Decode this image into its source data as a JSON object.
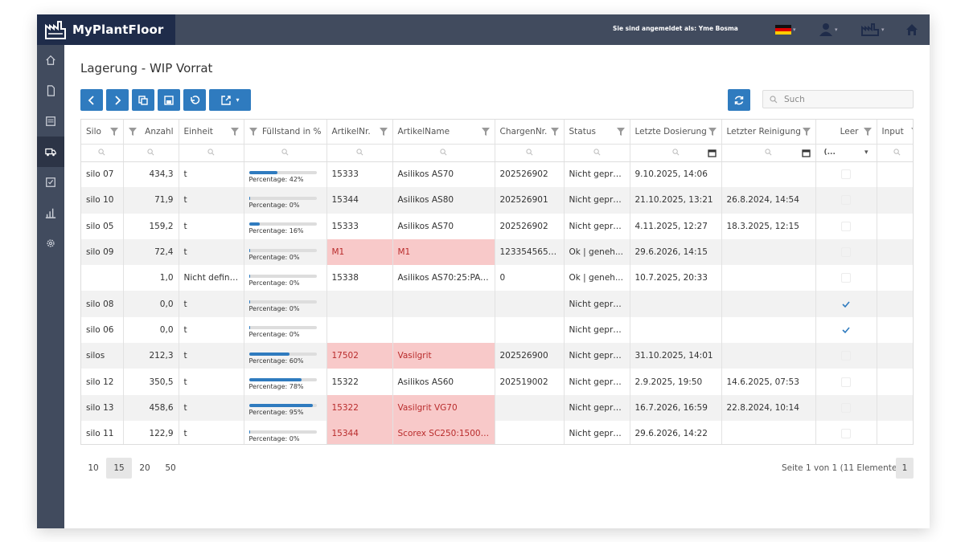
{
  "app": {
    "name": "MyPlantFloor",
    "login_text": "Sie sind angemeldet als: Yme Bosma"
  },
  "colors": {
    "accent": "#2f7bbf",
    "topbar": "#414b5e",
    "brand_bg": "#1f2c4a",
    "highlight": "#f8c9c9"
  },
  "sidebar": {
    "items": [
      {
        "icon": "home-icon"
      },
      {
        "icon": "document-icon"
      },
      {
        "icon": "list-icon"
      },
      {
        "icon": "truck-icon",
        "active": true
      },
      {
        "icon": "checklist-icon"
      },
      {
        "icon": "bar-chart-icon"
      },
      {
        "icon": "gear-icon"
      }
    ]
  },
  "page": {
    "title": "Lagerung - WIP Vorrat"
  },
  "search": {
    "placeholder": "Such"
  },
  "columns": {
    "silo": "Silo",
    "anzahl": "Anzahl",
    "einheit": "Einheit",
    "fuellstand": "Füllstand in %",
    "artikelnr": "ArtikelNr.",
    "artikelname": "ArtikelName",
    "chargennr": "ChargenNr.",
    "status": "Status",
    "letzte_dosierung": "Letzte Dosierung",
    "letzter_reinigung": "Letzter Reinigung",
    "leer": "Leer",
    "input": "Input"
  },
  "leer_filter": "(...",
  "percentage_prefix": "Percentage: ",
  "rows": [
    {
      "silo": "silo 07",
      "anzahl": "434,3",
      "einheit": "t",
      "pct": 42,
      "pct_label": "Percentage: 42%",
      "artikelnr": "15333",
      "artikelname": "Asilikos AS70",
      "chargennr": "202526902",
      "status": "Nicht geprüft",
      "dosierung": "9.10.2025, 14:06",
      "reinigung": "",
      "leer": false,
      "red": false
    },
    {
      "silo": "silo 10",
      "anzahl": "71,9",
      "einheit": "t",
      "pct": 0,
      "pct_label": "Percentage: 0%",
      "artikelnr": "15344",
      "artikelname": "Asilikos AS80",
      "chargennr": "202526901",
      "status": "Nicht geprüft",
      "dosierung": "21.10.2025, 13:21",
      "reinigung": "26.8.2024, 14:54",
      "leer": false,
      "red": false
    },
    {
      "silo": "silo 05",
      "anzahl": "159,2",
      "einheit": "t",
      "pct": 16,
      "pct_label": "Percentage: 16%",
      "artikelnr": "15333",
      "artikelname": "Asilikos AS70",
      "chargennr": "202526902",
      "status": "Nicht geprüft",
      "dosierung": "4.11.2025, 12:27",
      "reinigung": "18.3.2025, 12:15",
      "leer": false,
      "red": false
    },
    {
      "silo": "silo 09",
      "anzahl": "72,4",
      "einheit": "t",
      "pct": 0,
      "pct_label": "Percentage: 0%",
      "artikelnr": "M1",
      "artikelname": "M1",
      "chargennr": "12335456546",
      "status": "Ok | geneh...",
      "dosierung": "29.6.2026, 14:15",
      "reinigung": "",
      "leer": false,
      "red": true
    },
    {
      "silo": "",
      "anzahl": "1,0",
      "einheit": "Nicht definiert",
      "pct": 0,
      "pct_label": "Percentage: 0%",
      "artikelnr": "15338",
      "artikelname": "Asilikos AS70:25:PA:H...",
      "chargennr": "0",
      "status": "Ok | geneh...",
      "dosierung": "10.7.2025, 20:33",
      "reinigung": "",
      "leer": false,
      "red": false
    },
    {
      "silo": "silo 08",
      "anzahl": "0,0",
      "einheit": "t",
      "pct": 0,
      "pct_label": "Percentage: 0%",
      "artikelnr": "",
      "artikelname": "",
      "chargennr": "",
      "status": "Nicht geprüft",
      "dosierung": "",
      "reinigung": "",
      "leer": true,
      "red": false
    },
    {
      "silo": "silo 06",
      "anzahl": "0,0",
      "einheit": "t",
      "pct": 0,
      "pct_label": "Percentage: 0%",
      "artikelnr": "",
      "artikelname": "",
      "chargennr": "",
      "status": "Nicht geprüft",
      "dosierung": "",
      "reinigung": "",
      "leer": true,
      "red": false
    },
    {
      "silo": "silos",
      "anzahl": "212,3",
      "einheit": "t",
      "pct": 60,
      "pct_label": "Percentage: 60%",
      "artikelnr": "17502",
      "artikelname": "Vasilgrit",
      "chargennr": "202526900",
      "status": "Nicht geprüft",
      "dosierung": "31.10.2025, 14:01",
      "reinigung": "",
      "leer": false,
      "red": true
    },
    {
      "silo": "silo 12",
      "anzahl": "350,5",
      "einheit": "t",
      "pct": 78,
      "pct_label": "Percentage: 78%",
      "artikelnr": "15322",
      "artikelname": "Asilikos AS60",
      "chargennr": "202519002",
      "status": "Nicht geprüft",
      "dosierung": "2.9.2025, 19:50",
      "reinigung": "14.6.2025, 07:53",
      "leer": false,
      "red": false
    },
    {
      "silo": "silo 13",
      "anzahl": "458,6",
      "einheit": "t",
      "pct": 95,
      "pct_label": "Percentage: 95%",
      "artikelnr": "15322",
      "artikelname": "Vasilgrit VG70",
      "chargennr": "",
      "status": "Nicht geprüft",
      "dosierung": "16.7.2026, 16:59",
      "reinigung": "22.8.2024, 10:14",
      "leer": false,
      "red": true
    },
    {
      "silo": "silo 11",
      "anzahl": "122,9",
      "einheit": "t",
      "pct": 0,
      "pct_label": "Percentage: 0%",
      "artikelnr": "15344",
      "artikelname": "Scorex SC250:1500:B4...",
      "chargennr": "",
      "status": "Nicht geprüft",
      "dosierung": "29.6.2026, 14:22",
      "reinigung": "",
      "leer": false,
      "red": true
    }
  ],
  "pager": {
    "sizes": [
      "10",
      "15",
      "20",
      "50"
    ],
    "active_size": "15",
    "info": "Seite 1 von 1 (11 Elemente)",
    "current_page": "1"
  }
}
